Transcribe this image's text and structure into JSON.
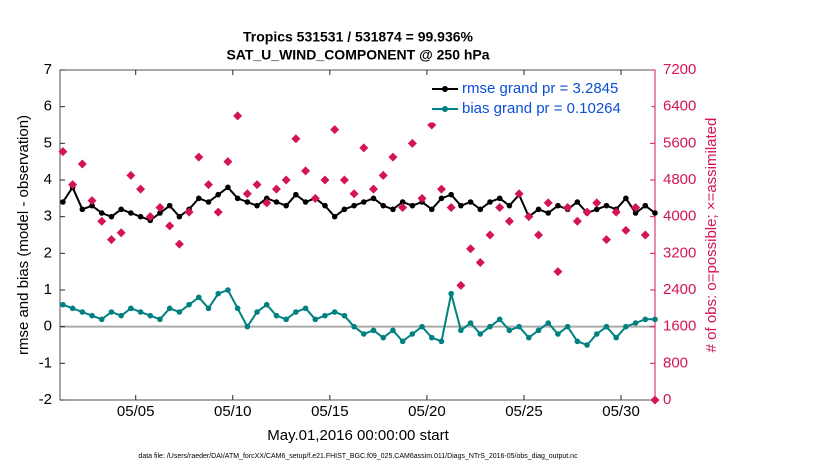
{
  "chart_data": {
    "type": "line",
    "title": "Tropics 531531 / 531874 = 99.936%",
    "subtitle": "SAT_U_WIND_COMPONENT @ 250 hPa",
    "xlabel": "May.01,2016 00:00:00 start",
    "ylabel": "rmse and bias (model - observation)",
    "y2label": "# of obs: o=possible; ×=assimilated",
    "footnote": "data file: /Users/raeder/DAI/ATM_forcXX/CAM6_setup/f.e21.FHIST_BGC.f09_025.CAM6assim.011/Diags_NTrS_2016-05/obs_diag_output.nc",
    "legend": "northeast",
    "y2color": "#d4145a",
    "xlim": [
      1.1,
      31.75
    ],
    "xticks": [
      {
        "value": 5,
        "label": "05/05"
      },
      {
        "value": 10,
        "label": "05/10"
      },
      {
        "value": 15,
        "label": "05/15"
      },
      {
        "value": 20,
        "label": "05/20"
      },
      {
        "value": 25,
        "label": "05/25"
      },
      {
        "value": 30,
        "label": "05/30"
      }
    ],
    "ylim": [
      -2,
      7
    ],
    "yticks": [
      -2,
      -1,
      0,
      1,
      2,
      3,
      4,
      5,
      6,
      7
    ],
    "y2lim": [
      0,
      7200
    ],
    "y2ticks": [
      0,
      800,
      1600,
      2400,
      3200,
      4000,
      4800,
      5600,
      6400,
      7200
    ],
    "x": [
      1.25,
      1.75,
      2.25,
      2.75,
      3.25,
      3.75,
      4.25,
      4.75,
      5.25,
      5.75,
      6.25,
      6.75,
      7.25,
      7.75,
      8.25,
      8.75,
      9.25,
      9.75,
      10.25,
      10.75,
      11.25,
      11.75,
      12.25,
      12.75,
      13.25,
      13.75,
      14.25,
      14.75,
      15.25,
      15.75,
      16.25,
      16.75,
      17.25,
      17.75,
      18.25,
      18.75,
      19.25,
      19.75,
      20.25,
      20.75,
      21.25,
      21.75,
      22.25,
      22.75,
      23.25,
      23.75,
      24.25,
      24.75,
      25.25,
      25.75,
      26.25,
      26.75,
      27.25,
      27.75,
      28.25,
      28.75,
      29.25,
      29.75,
      30.25,
      30.75,
      31.25,
      31.75
    ],
    "series": [
      {
        "name": "rmse grand pr = 3.2845",
        "color": "#000000",
        "marker": "dot",
        "values": [
          3.4,
          3.8,
          3.2,
          3.3,
          3.1,
          3.0,
          3.2,
          3.1,
          3.0,
          2.9,
          3.1,
          3.3,
          3.0,
          3.2,
          3.5,
          3.4,
          3.6,
          3.8,
          3.5,
          3.4,
          3.3,
          3.5,
          3.4,
          3.3,
          3.6,
          3.4,
          3.5,
          3.3,
          3.0,
          3.2,
          3.3,
          3.4,
          3.5,
          3.3,
          3.2,
          3.4,
          3.3,
          3.4,
          3.2,
          3.5,
          3.6,
          3.3,
          3.4,
          3.2,
          3.4,
          3.5,
          3.3,
          3.6,
          3.0,
          3.2,
          3.1,
          3.3,
          3.2,
          3.4,
          3.1,
          3.2,
          3.3,
          3.2,
          3.5,
          3.1,
          3.3,
          3.1
        ]
      },
      {
        "name": "bias grand pr = 0.10264",
        "color": "#008080",
        "marker": "dot",
        "values": [
          0.6,
          0.5,
          0.4,
          0.3,
          0.2,
          0.4,
          0.3,
          0.5,
          0.4,
          0.3,
          0.2,
          0.5,
          0.4,
          0.6,
          0.8,
          0.5,
          0.9,
          1.0,
          0.5,
          0.0,
          0.4,
          0.6,
          0.3,
          0.2,
          0.4,
          0.5,
          0.2,
          0.3,
          0.4,
          0.3,
          0.0,
          -0.2,
          -0.1,
          -0.3,
          -0.1,
          -0.4,
          -0.2,
          0.0,
          -0.3,
          -0.4,
          0.9,
          -0.1,
          0.1,
          -0.2,
          0.0,
          0.2,
          -0.1,
          0.0,
          -0.3,
          -0.1,
          0.1,
          -0.2,
          0.0,
          -0.4,
          -0.5,
          -0.2,
          0.0,
          -0.3,
          0.0,
          0.1,
          0.2,
          0.2
        ]
      },
      {
        "color": "#d4145a",
        "marker": "cross",
        "axis": "y2",
        "values": [
          5420,
          4700,
          5150,
          4350,
          3900,
          3500,
          3650,
          4900,
          4600,
          4000,
          4200,
          3800,
          3400,
          4100,
          5300,
          4700,
          4100,
          5200,
          6200,
          4500,
          4700,
          4300,
          4600,
          4800,
          5700,
          5000,
          4400,
          4800,
          5900,
          4800,
          4500,
          5500,
          4600,
          4900,
          5300,
          4200,
          5600,
          4400,
          6000,
          4600,
          4200,
          2500,
          3300,
          3000,
          3600,
          4200,
          3900,
          4500,
          4000,
          3600,
          4300,
          2800,
          4200,
          3900,
          4100,
          4300,
          3500,
          4100,
          3700,
          4200,
          3600,
          0
        ]
      }
    ]
  }
}
